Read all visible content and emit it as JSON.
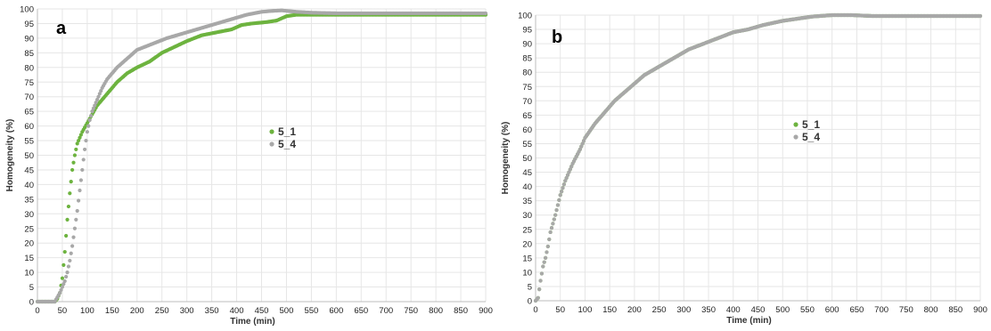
{
  "chart_data": [
    {
      "type": "scatter",
      "panel_label": "a",
      "xlabel": "Time (min)",
      "ylabel": "Homogeneity (%)",
      "xlim": [
        0,
        900
      ],
      "ylim": [
        0,
        100
      ],
      "x_ticks": [
        "0",
        "50",
        "100",
        "150",
        "200",
        "250",
        "300",
        "350",
        "400",
        "450",
        "500",
        "550",
        "600",
        "650",
        "700",
        "750",
        "800",
        "850",
        "900"
      ],
      "y_ticks": [
        "0",
        "5",
        "10",
        "15",
        "20",
        "25",
        "30",
        "35",
        "40",
        "45",
        "50",
        "55",
        "60",
        "65",
        "70",
        "75",
        "80",
        "85",
        "90",
        "95",
        "100"
      ],
      "grid": true,
      "legend_position": "center",
      "series": [
        {
          "name": "5_1",
          "color": "#6db33f",
          "points": [
            [
              0,
              0
            ],
            [
              35,
              0
            ],
            [
              40,
              1
            ],
            [
              45,
              3
            ],
            [
              50,
              8
            ],
            [
              55,
              17
            ],
            [
              60,
              28
            ],
            [
              65,
              37
            ],
            [
              70,
              45
            ],
            [
              75,
              50
            ],
            [
              80,
              54
            ],
            [
              90,
              58
            ],
            [
              100,
              61
            ],
            [
              110,
              64
            ],
            [
              120,
              67
            ],
            [
              140,
              71
            ],
            [
              160,
              75
            ],
            [
              180,
              78
            ],
            [
              200,
              80
            ],
            [
              225,
              82
            ],
            [
              250,
              85
            ],
            [
              275,
              87
            ],
            [
              300,
              89
            ],
            [
              330,
              91
            ],
            [
              360,
              92
            ],
            [
              390,
              93
            ],
            [
              410,
              94.5
            ],
            [
              430,
              95
            ],
            [
              460,
              95.5
            ],
            [
              480,
              96
            ],
            [
              500,
              97.5
            ],
            [
              520,
              98
            ],
            [
              900,
              98
            ]
          ]
        },
        {
          "name": "5_4",
          "color": "#a8a8a8",
          "points": [
            [
              0,
              0
            ],
            [
              35,
              0
            ],
            [
              45,
              3
            ],
            [
              50,
              5
            ],
            [
              55,
              7
            ],
            [
              60,
              10
            ],
            [
              65,
              14
            ],
            [
              70,
              19
            ],
            [
              75,
              25
            ],
            [
              80,
              31
            ],
            [
              85,
              38
            ],
            [
              90,
              45
            ],
            [
              95,
              52
            ],
            [
              100,
              58
            ],
            [
              105,
              62
            ],
            [
              110,
              65
            ],
            [
              120,
              69
            ],
            [
              130,
              73
            ],
            [
              140,
              76
            ],
            [
              160,
              80
            ],
            [
              180,
              83
            ],
            [
              200,
              86
            ],
            [
              230,
              88
            ],
            [
              260,
              90
            ],
            [
              300,
              92
            ],
            [
              340,
              94
            ],
            [
              380,
              96
            ],
            [
              420,
              98
            ],
            [
              450,
              99
            ],
            [
              470,
              99.3
            ],
            [
              490,
              99.5
            ],
            [
              520,
              99
            ],
            [
              550,
              98.7
            ],
            [
              600,
              98.5
            ],
            [
              900,
              98.5
            ]
          ]
        }
      ]
    },
    {
      "type": "scatter",
      "panel_label": "b",
      "xlabel": "Time (min)",
      "ylabel": "Homogeneity (%)",
      "xlim": [
        0,
        900
      ],
      "ylim": [
        0,
        100
      ],
      "x_ticks": [
        "0",
        "50",
        "100",
        "150",
        "200",
        "250",
        "300",
        "350",
        "400",
        "450",
        "500",
        "550",
        "600",
        "650",
        "700",
        "750",
        "800",
        "850",
        "900"
      ],
      "y_ticks": [
        "0",
        "5",
        "10",
        "15",
        "20",
        "25",
        "30",
        "35",
        "40",
        "45",
        "50",
        "55",
        "60",
        "65",
        "70",
        "75",
        "80",
        "85",
        "90",
        "95",
        "100"
      ],
      "grid": true,
      "legend_position": "center",
      "series": [
        {
          "name": "5_1",
          "color": "#6db33f",
          "points": [
            [
              0,
              0
            ],
            [
              5,
              1
            ],
            [
              10,
              7
            ],
            [
              15,
              12
            ],
            [
              20,
              15
            ],
            [
              25,
              19
            ],
            [
              30,
              24
            ],
            [
              40,
              30
            ],
            [
              50,
              37
            ],
            [
              60,
              42
            ],
            [
              75,
              48
            ],
            [
              90,
              53
            ],
            [
              100,
              57
            ],
            [
              120,
              62
            ],
            [
              140,
              66
            ],
            [
              160,
              70
            ],
            [
              180,
              73
            ],
            [
              200,
              76
            ],
            [
              220,
              79
            ],
            [
              250,
              82
            ],
            [
              280,
              85
            ],
            [
              310,
              88
            ],
            [
              340,
              90
            ],
            [
              370,
              92
            ],
            [
              400,
              94
            ],
            [
              430,
              95
            ],
            [
              460,
              96.5
            ],
            [
              500,
              98
            ],
            [
              540,
              99
            ],
            [
              560,
              99.5
            ],
            [
              600,
              100
            ],
            [
              640,
              100
            ],
            [
              680,
              99.7
            ],
            [
              720,
              99.7
            ],
            [
              900,
              99.7
            ]
          ]
        },
        {
          "name": "5_4",
          "color": "#a8a8a8",
          "points": [
            [
              0,
              0
            ],
            [
              5,
              1
            ],
            [
              10,
              7
            ],
            [
              15,
              12
            ],
            [
              20,
              15
            ],
            [
              25,
              19
            ],
            [
              30,
              24
            ],
            [
              40,
              30
            ],
            [
              50,
              37
            ],
            [
              60,
              42
            ],
            [
              75,
              48
            ],
            [
              90,
              53
            ],
            [
              100,
              57
            ],
            [
              120,
              62
            ],
            [
              140,
              66
            ],
            [
              160,
              70
            ],
            [
              180,
              73
            ],
            [
              200,
              76
            ],
            [
              220,
              79
            ],
            [
              250,
              82
            ],
            [
              280,
              85
            ],
            [
              310,
              88
            ],
            [
              340,
              90
            ],
            [
              370,
              92
            ],
            [
              400,
              94
            ],
            [
              430,
              95
            ],
            [
              460,
              96.5
            ],
            [
              500,
              98
            ],
            [
              540,
              99
            ],
            [
              560,
              99.5
            ],
            [
              600,
              100
            ],
            [
              640,
              100
            ],
            [
              680,
              99.7
            ],
            [
              720,
              99.7
            ],
            [
              900,
              99.7
            ]
          ]
        }
      ]
    }
  ]
}
